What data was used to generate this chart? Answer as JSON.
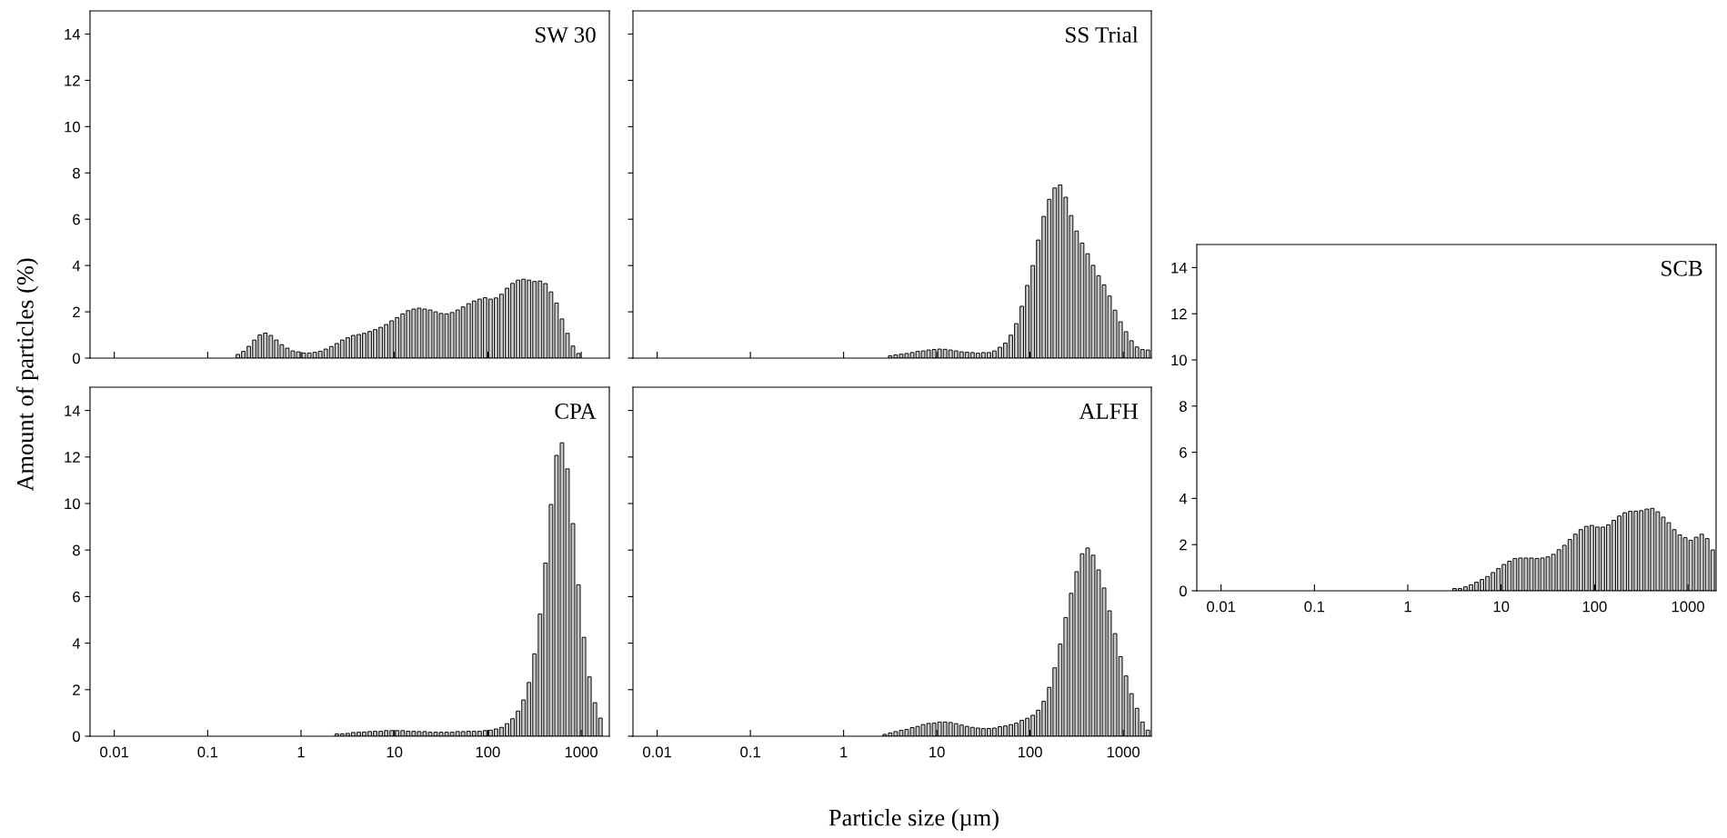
{
  "chart_data": [
    {
      "type": "histogram",
      "title": "SW 30",
      "ylabel": "Amount of particles (%)",
      "log": "x",
      "color": "#c8c8c8",
      "tick_labels": "y",
      "xlim": [
        0.0055,
        2000
      ],
      "ylim": [
        0,
        15
      ],
      "xticks": [
        0.01,
        0.1,
        1,
        10,
        100,
        1000
      ],
      "yticks": [
        0,
        2,
        4,
        6,
        8,
        10,
        12,
        14
      ],
      "bins": [
        0.1968,
        0.2254,
        0.2581,
        0.2955,
        0.3383,
        0.3874,
        0.4437,
        0.508,
        0.5817,
        0.6661,
        0.7627,
        0.8733,
        1,
        1.145,
        1.311,
        1.501,
        1.719,
        1.968,
        2.254,
        2.581,
        2.955,
        3.383,
        3.874,
        4.437,
        5.08,
        5.817,
        6.661,
        7.627,
        8.733,
        10,
        11.45,
        13.11,
        15.01,
        17.19,
        19.68,
        22.54,
        25.81,
        29.55,
        33.83,
        38.74,
        44.37,
        50.8,
        58.17,
        66.61,
        76.27,
        87.33,
        100,
        114.5,
        131.1,
        150.1,
        171.9,
        196.8,
        225.4,
        258.1,
        295.5,
        338.3,
        387.4,
        443.7,
        508,
        581.7,
        666.1,
        762.7,
        873.3,
        1000
      ],
      "values": [
        0.16,
        0.29,
        0.51,
        0.78,
        1.0,
        1.08,
        0.98,
        0.78,
        0.58,
        0.43,
        0.31,
        0.27,
        0.22,
        0.22,
        0.25,
        0.3,
        0.39,
        0.5,
        0.63,
        0.78,
        0.88,
        0.98,
        1.02,
        1.07,
        1.15,
        1.23,
        1.33,
        1.45,
        1.61,
        1.75,
        1.91,
        2.05,
        2.12,
        2.16,
        2.12,
        2.08,
        2.0,
        1.93,
        1.91,
        1.97,
        2.08,
        2.21,
        2.35,
        2.47,
        2.55,
        2.61,
        2.55,
        2.6,
        2.76,
        3.02,
        3.23,
        3.37,
        3.41,
        3.37,
        3.31,
        3.33,
        3.22,
        2.86,
        2.38,
        1.69,
        1.07,
        0.52,
        0.2
      ]
    },
    {
      "type": "histogram",
      "title": "SS Trial",
      "log": "x",
      "color": "#c8c8c8",
      "tick_labels": false,
      "xlim": [
        0.0055,
        2000
      ],
      "ylim": [
        0,
        15
      ],
      "xticks": [
        0.01,
        0.1,
        1,
        10,
        100,
        1000
      ],
      "yticks": [
        0,
        2,
        4,
        6,
        8,
        10,
        12,
        14
      ],
      "bins": [
        2.955,
        3.383,
        3.874,
        4.437,
        5.08,
        5.817,
        6.661,
        7.627,
        8.733,
        10,
        11.45,
        13.11,
        15.01,
        17.19,
        19.68,
        22.54,
        25.81,
        29.55,
        33.83,
        38.74,
        44.37,
        50.8,
        58.17,
        66.61,
        76.27,
        87.33,
        100,
        114.5,
        131.1,
        150.1,
        171.9,
        196.8,
        225.4,
        258.1,
        295.5,
        338.3,
        387.4,
        443.7,
        508,
        581.7,
        666.1,
        762.7,
        873.3,
        1000,
        1145,
        1311,
        1501,
        1719,
        1968
      ],
      "values": [
        0.1,
        0.14,
        0.17,
        0.2,
        0.24,
        0.29,
        0.31,
        0.35,
        0.37,
        0.39,
        0.38,
        0.35,
        0.31,
        0.27,
        0.25,
        0.24,
        0.21,
        0.24,
        0.24,
        0.31,
        0.47,
        0.65,
        0.99,
        1.49,
        2.24,
        3.14,
        4.0,
        5.1,
        6.12,
        6.86,
        7.35,
        7.48,
        6.95,
        6.16,
        5.49,
        4.97,
        4.51,
        4.01,
        3.56,
        3.16,
        2.68,
        2.07,
        1.57,
        1.14,
        0.75,
        0.48,
        0.37,
        0.35
      ]
    },
    {
      "type": "histogram",
      "title": "CPA",
      "log": "x",
      "color": "#c8c8c8",
      "xlim": [
        0.0055,
        2000
      ],
      "ylim": [
        0,
        15
      ],
      "xticks": [
        0.01,
        0.1,
        1,
        10,
        100,
        1000
      ],
      "yticks": [
        0,
        2,
        4,
        6,
        8,
        10,
        12,
        14
      ],
      "bins": [
        2.254,
        2.581,
        2.955,
        3.383,
        3.874,
        4.437,
        5.08,
        5.817,
        6.661,
        7.627,
        8.733,
        10,
        11.45,
        13.11,
        15.01,
        17.19,
        19.68,
        22.54,
        25.81,
        29.55,
        33.83,
        38.74,
        44.37,
        50.8,
        58.17,
        66.61,
        76.27,
        87.33,
        100,
        114.5,
        131.1,
        150.1,
        171.9,
        196.8,
        225.4,
        258.1,
        295.5,
        338.3,
        387.4,
        443.7,
        508,
        581.7,
        666.1,
        762.7,
        873.3,
        1000,
        1145,
        1311,
        1501,
        1719
      ],
      "values": [
        0.1,
        0.1,
        0.12,
        0.16,
        0.17,
        0.18,
        0.2,
        0.21,
        0.21,
        0.24,
        0.24,
        0.24,
        0.24,
        0.21,
        0.21,
        0.2,
        0.2,
        0.17,
        0.17,
        0.17,
        0.17,
        0.17,
        0.2,
        0.2,
        0.21,
        0.21,
        0.21,
        0.24,
        0.26,
        0.31,
        0.38,
        0.54,
        0.75,
        1.08,
        1.56,
        2.31,
        3.54,
        5.25,
        7.44,
        9.96,
        12.07,
        12.61,
        11.49,
        9.14,
        6.51,
        4.25,
        2.55,
        1.44,
        0.78
      ]
    },
    {
      "type": "histogram",
      "title": "ALFH",
      "xlabel": "Particle size (µm)",
      "log": "x",
      "color": "#c8c8c8",
      "tick_labels": "x",
      "xlim": [
        0.0055,
        2000
      ],
      "ylim": [
        0,
        15
      ],
      "xticks": [
        0.01,
        0.1,
        1,
        10,
        100,
        1000
      ],
      "yticks": [
        0,
        2,
        4,
        6,
        8,
        10,
        12,
        14
      ],
      "bins": [
        2.581,
        2.955,
        3.383,
        3.874,
        4.437,
        5.08,
        5.817,
        6.661,
        7.627,
        8.733,
        10,
        11.45,
        13.11,
        15.01,
        17.19,
        19.68,
        22.54,
        25.81,
        29.55,
        33.83,
        38.74,
        44.37,
        50.8,
        58.17,
        66.61,
        76.27,
        87.33,
        100,
        114.5,
        131.1,
        150.1,
        171.9,
        196.8,
        225.4,
        258.1,
        295.5,
        338.3,
        387.4,
        443.7,
        508,
        581.7,
        666.1,
        762.7,
        873.3,
        1000,
        1145,
        1311,
        1501,
        1719,
        1968
      ],
      "values": [
        0.08,
        0.14,
        0.2,
        0.25,
        0.29,
        0.37,
        0.42,
        0.5,
        0.55,
        0.56,
        0.61,
        0.61,
        0.59,
        0.54,
        0.48,
        0.42,
        0.38,
        0.35,
        0.33,
        0.33,
        0.35,
        0.41,
        0.44,
        0.5,
        0.56,
        0.68,
        0.77,
        0.9,
        1.12,
        1.5,
        2.1,
        2.94,
        3.96,
        5.1,
        6.14,
        7.07,
        7.84,
        8.09,
        7.78,
        7.15,
        6.37,
        5.39,
        4.41,
        3.42,
        2.59,
        1.83,
        1.2,
        0.61,
        0.26
      ]
    },
    {
      "type": "histogram",
      "title": "SCB",
      "log": "x",
      "color": "#c8c8c8",
      "xlim": [
        0.0055,
        2000
      ],
      "ylim": [
        0,
        15
      ],
      "xticks": [
        0.01,
        0.1,
        1,
        10,
        100,
        1000
      ],
      "yticks": [
        0,
        2,
        4,
        6,
        8,
        10,
        12,
        14
      ],
      "bins": [
        2.955,
        3.383,
        3.874,
        4.437,
        5.08,
        5.817,
        6.661,
        7.627,
        8.733,
        10,
        11.45,
        13.11,
        15.01,
        17.19,
        19.68,
        22.54,
        25.81,
        29.55,
        33.83,
        38.74,
        44.37,
        50.8,
        58.17,
        66.61,
        76.27,
        87.33,
        100,
        114.5,
        131.1,
        150.1,
        171.9,
        196.8,
        225.4,
        258.1,
        295.5,
        338.3,
        387.4,
        443.7,
        508,
        581.7,
        666.1,
        762.7,
        873.3,
        1000,
        1145,
        1311,
        1501,
        1719,
        1968
      ],
      "values": [
        0.1,
        0.1,
        0.17,
        0.26,
        0.37,
        0.49,
        0.62,
        0.79,
        0.96,
        1.14,
        1.28,
        1.4,
        1.42,
        1.42,
        1.42,
        1.4,
        1.42,
        1.47,
        1.58,
        1.78,
        1.97,
        2.22,
        2.45,
        2.65,
        2.79,
        2.83,
        2.76,
        2.76,
        2.86,
        3.05,
        3.24,
        3.38,
        3.44,
        3.45,
        3.47,
        3.54,
        3.57,
        3.42,
        3.19,
        2.95,
        2.65,
        2.42,
        2.3,
        2.19,
        2.32,
        2.45,
        2.26,
        1.77
      ]
    }
  ]
}
